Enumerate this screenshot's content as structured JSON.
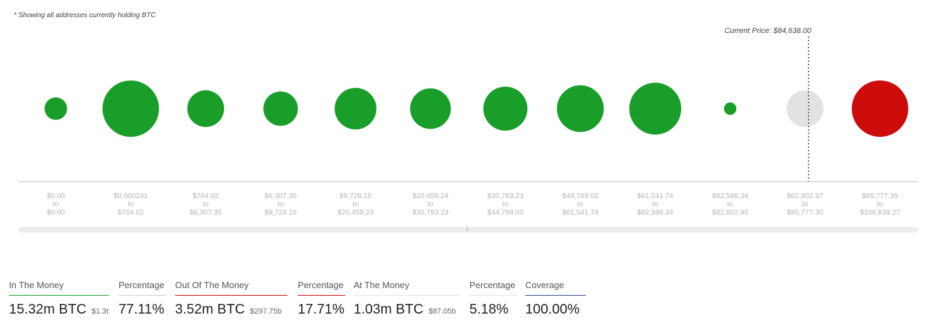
{
  "note": "* Showing all addresses currently holding BTC",
  "current_price_label": "Current Price: $84,638.00",
  "colors": {
    "in_the_money": "#1a9e2a",
    "out_of_the_money": "#cc0b0b",
    "at_the_money": "#e2e2e2",
    "coverage": "#2f4a8a"
  },
  "chart_data": {
    "type": "scatter",
    "title": "",
    "current_price": 84638.0,
    "bubble_size_scale": "relative",
    "buckets": [
      {
        "from": "$0.00",
        "to": "$0.00",
        "status": "in",
        "size": 0.4
      },
      {
        "from": "$0.000241",
        "to": "$764.02",
        "status": "in",
        "size": 1.0
      },
      {
        "from": "$764.02",
        "to": "$6,307.35",
        "status": "in",
        "size": 0.65
      },
      {
        "from": "$6,307.35",
        "to": "$9,728.16",
        "status": "in",
        "size": 0.61
      },
      {
        "from": "$9,728.16",
        "to": "$20,459.23",
        "status": "in",
        "size": 0.74
      },
      {
        "from": "$20,459.24",
        "to": "$30,783.23",
        "status": "in",
        "size": 0.72
      },
      {
        "from": "$30,783.23",
        "to": "$44,789.02",
        "status": "in",
        "size": 0.78
      },
      {
        "from": "$44,789.02",
        "to": "$61,541.74",
        "status": "in",
        "size": 0.83
      },
      {
        "from": "$61,541.74",
        "to": "$82,588.34",
        "status": "in",
        "size": 0.92
      },
      {
        "from": "$82,588.34",
        "to": "$82,802.95",
        "status": "in",
        "size": 0.22
      },
      {
        "from": "$82,802.97",
        "to": "$85,777.30",
        "status": "at",
        "size": 0.65
      },
      {
        "from": "$85,777.35",
        "to": "$106,839.27",
        "status": "out",
        "size": 1.0
      }
    ],
    "to_word": "to"
  },
  "summary": {
    "in_label": "In The Money",
    "in_value": "15.32m BTC",
    "in_sub": "$1.3t",
    "in_pct_label": "Percentage",
    "in_pct": "77.11%",
    "out_label": "Out Of The Money",
    "out_value": "3.52m BTC",
    "out_sub": "$297.75b",
    "out_pct_label": "Percentage",
    "out_pct": "17.71%",
    "at_label": "At The Money",
    "at_value": "1.03m BTC",
    "at_sub": "$87.05b",
    "at_pct_label": "Percentage",
    "at_pct": "5.18%",
    "cov_label": "Coverage",
    "cov_value": "100.00%"
  }
}
